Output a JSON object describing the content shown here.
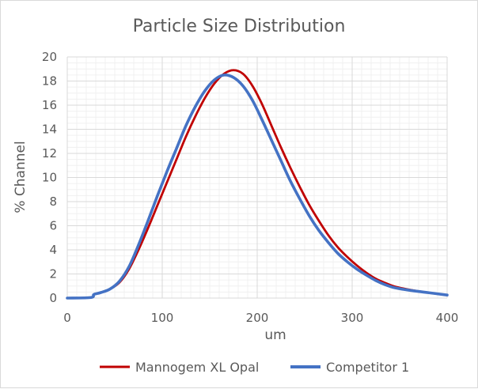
{
  "chart_data": {
    "type": "line",
    "title": "Particle Size Distribution",
    "xlabel": "um",
    "ylabel": "% Channel",
    "xlim": [
      0,
      400
    ],
    "ylim": [
      0,
      20
    ],
    "x_ticks": [
      0,
      100,
      200,
      300,
      400
    ],
    "y_ticks": [
      0,
      2,
      4,
      6,
      8,
      10,
      12,
      14,
      16,
      18,
      20
    ],
    "grid": true,
    "minor_grid": true,
    "legend_position": "bottom",
    "series": [
      {
        "name": "Mannogem XL Opal",
        "color": "#c00000",
        "points": [
          [
            0,
            0
          ],
          [
            25,
            0.05
          ],
          [
            28,
            0.3
          ],
          [
            35,
            0.45
          ],
          [
            45,
            0.75
          ],
          [
            55,
            1.3
          ],
          [
            65,
            2.4
          ],
          [
            75,
            4.0
          ],
          [
            85,
            5.8
          ],
          [
            95,
            7.7
          ],
          [
            105,
            9.6
          ],
          [
            115,
            11.5
          ],
          [
            125,
            13.4
          ],
          [
            135,
            15.1
          ],
          [
            145,
            16.6
          ],
          [
            155,
            17.8
          ],
          [
            165,
            18.6
          ],
          [
            175,
            18.9
          ],
          [
            185,
            18.6
          ],
          [
            195,
            17.6
          ],
          [
            205,
            16.1
          ],
          [
            215,
            14.3
          ],
          [
            225,
            12.5
          ],
          [
            235,
            10.8
          ],
          [
            245,
            9.2
          ],
          [
            255,
            7.7
          ],
          [
            265,
            6.4
          ],
          [
            275,
            5.2
          ],
          [
            285,
            4.2
          ],
          [
            295,
            3.4
          ],
          [
            305,
            2.7
          ],
          [
            315,
            2.1
          ],
          [
            325,
            1.6
          ],
          [
            335,
            1.25
          ],
          [
            345,
            0.95
          ],
          [
            360,
            0.7
          ],
          [
            380,
            0.45
          ],
          [
            400,
            0.25
          ]
        ]
      },
      {
        "name": "Competitor 1",
        "color": "#4472c4",
        "points": [
          [
            0,
            0
          ],
          [
            25,
            0.05
          ],
          [
            28,
            0.3
          ],
          [
            35,
            0.45
          ],
          [
            45,
            0.75
          ],
          [
            55,
            1.4
          ],
          [
            65,
            2.6
          ],
          [
            75,
            4.4
          ],
          [
            85,
            6.4
          ],
          [
            95,
            8.5
          ],
          [
            105,
            10.5
          ],
          [
            115,
            12.4
          ],
          [
            125,
            14.3
          ],
          [
            135,
            15.9
          ],
          [
            145,
            17.2
          ],
          [
            155,
            18.1
          ],
          [
            165,
            18.5
          ],
          [
            175,
            18.3
          ],
          [
            185,
            17.6
          ],
          [
            195,
            16.4
          ],
          [
            205,
            14.8
          ],
          [
            215,
            13.1
          ],
          [
            225,
            11.4
          ],
          [
            235,
            9.7
          ],
          [
            245,
            8.2
          ],
          [
            255,
            6.8
          ],
          [
            265,
            5.6
          ],
          [
            275,
            4.6
          ],
          [
            285,
            3.7
          ],
          [
            295,
            3.0
          ],
          [
            305,
            2.4
          ],
          [
            315,
            1.9
          ],
          [
            325,
            1.45
          ],
          [
            335,
            1.1
          ],
          [
            345,
            0.85
          ],
          [
            360,
            0.65
          ],
          [
            380,
            0.45
          ],
          [
            400,
            0.25
          ]
        ]
      }
    ]
  }
}
